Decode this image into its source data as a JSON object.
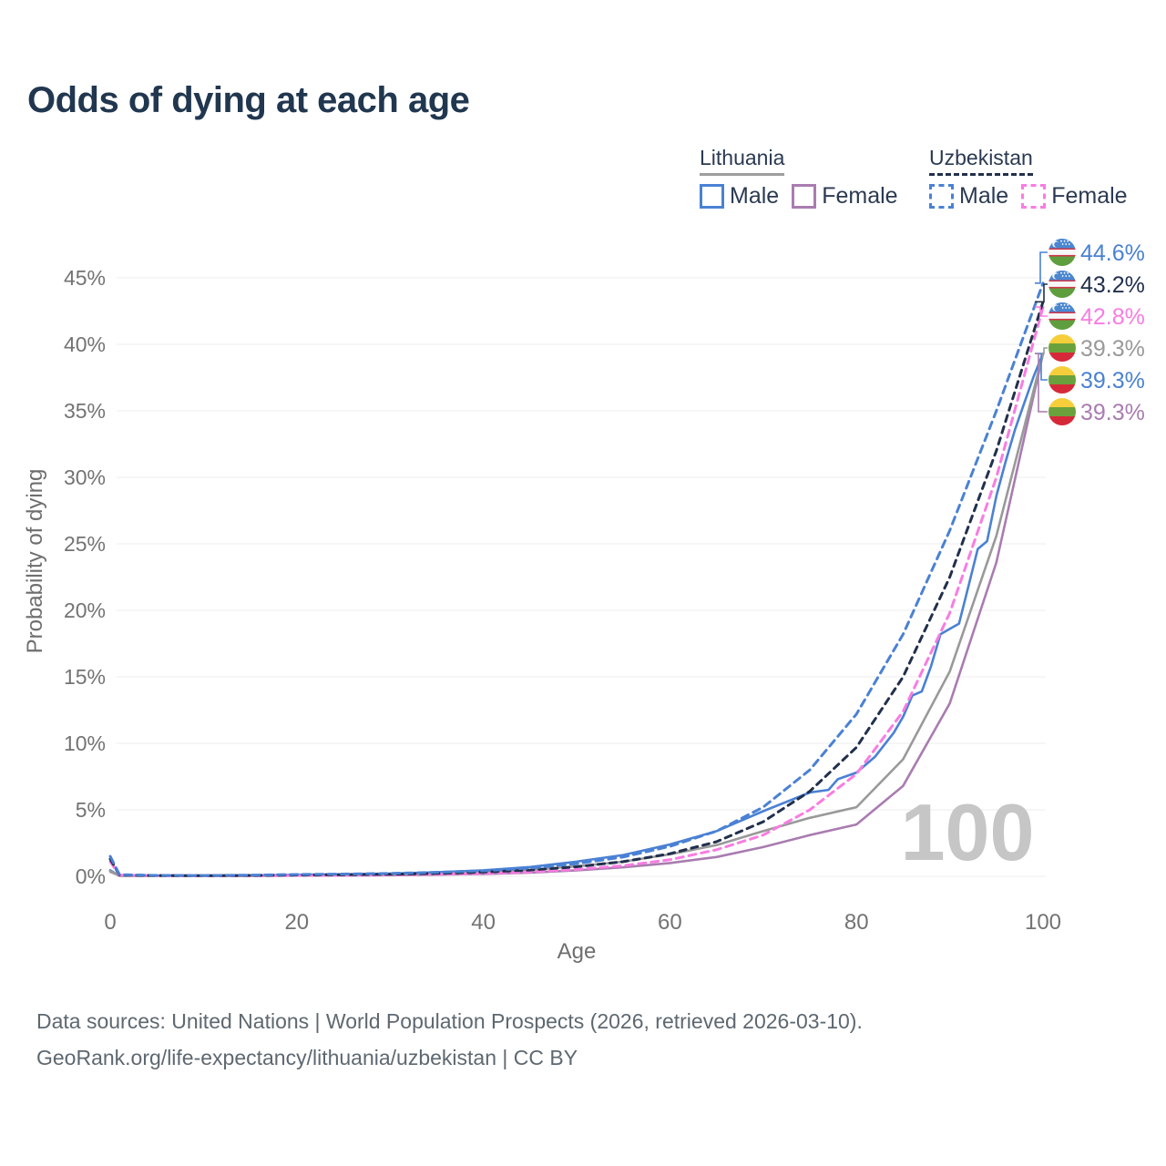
{
  "title": "Odds of dying at each age",
  "legend": {
    "groups": [
      {
        "id": "lithuania",
        "label": "Lithuania",
        "line_style": "solid",
        "line_color": "#9e9e9e",
        "items": [
          {
            "id": "male",
            "label": "Male",
            "color": "#4a81d4"
          },
          {
            "id": "female",
            "label": "Female",
            "color": "#a97cb0"
          }
        ]
      },
      {
        "id": "uzbekistan",
        "label": "Uzbekistan",
        "line_style": "dashed",
        "line_color": "#22304d",
        "items": [
          {
            "id": "male",
            "label": "Male",
            "color": "#4a81d4"
          },
          {
            "id": "female",
            "label": "Female",
            "color": "#f97ce1"
          }
        ]
      }
    ]
  },
  "chart_data": {
    "type": "line",
    "title": "Odds of dying at each age",
    "xlabel": "Age",
    "ylabel": "Probability of dying",
    "xlim": [
      0,
      100
    ],
    "ylim": [
      0,
      45
    ],
    "grid": "horizontal",
    "legend_position": "top-right",
    "hover_age_watermark": "100",
    "x_ticks": [
      {
        "v": 0,
        "label": "0"
      },
      {
        "v": 20,
        "label": "20"
      },
      {
        "v": 40,
        "label": "40"
      },
      {
        "v": 60,
        "label": "60"
      },
      {
        "v": 80,
        "label": "80"
      },
      {
        "v": 100,
        "label": "100"
      }
    ],
    "y_ticks": [
      {
        "v": 0,
        "label": "0%"
      },
      {
        "v": 5,
        "label": "5%"
      },
      {
        "v": 10,
        "label": "10%"
      },
      {
        "v": 15,
        "label": "15%"
      },
      {
        "v": 20,
        "label": "20%"
      },
      {
        "v": 25,
        "label": "25%"
      },
      {
        "v": 30,
        "label": "30%"
      },
      {
        "v": 35,
        "label": "35%"
      },
      {
        "v": 40,
        "label": "40%"
      },
      {
        "v": 45,
        "label": "45%"
      }
    ],
    "series": [
      {
        "id": "uzbekistan-male",
        "name": "Uzbekistan Male",
        "country": "Uzbekistan",
        "sex": "Male",
        "flag": "uzbekistan",
        "color": "#4a81d4",
        "dash": "8 6",
        "end_label": "44.6%",
        "points": [
          [
            0,
            1.5
          ],
          [
            1,
            0.12
          ],
          [
            5,
            0.07
          ],
          [
            10,
            0.06
          ],
          [
            15,
            0.09
          ],
          [
            20,
            0.14
          ],
          [
            25,
            0.17
          ],
          [
            30,
            0.22
          ],
          [
            35,
            0.3
          ],
          [
            40,
            0.42
          ],
          [
            45,
            0.62
          ],
          [
            50,
            0.95
          ],
          [
            55,
            1.45
          ],
          [
            60,
            2.25
          ],
          [
            65,
            3.4
          ],
          [
            70,
            5.2
          ],
          [
            75,
            8.0
          ],
          [
            80,
            12.2
          ],
          [
            85,
            18.2
          ],
          [
            90,
            26.0
          ],
          [
            95,
            35.0
          ],
          [
            100,
            44.6
          ]
        ]
      },
      {
        "id": "uzbekistan-total",
        "name": "Uzbekistan Both sexes",
        "country": "Uzbekistan",
        "sex": "Both",
        "flag": "uzbekistan",
        "color": "#22304d",
        "dash": "7 6",
        "end_label": "43.2%",
        "points": [
          [
            0,
            1.3
          ],
          [
            1,
            0.1
          ],
          [
            5,
            0.06
          ],
          [
            10,
            0.05
          ],
          [
            15,
            0.07
          ],
          [
            20,
            0.1
          ],
          [
            25,
            0.12
          ],
          [
            30,
            0.16
          ],
          [
            35,
            0.22
          ],
          [
            40,
            0.32
          ],
          [
            45,
            0.47
          ],
          [
            50,
            0.72
          ],
          [
            55,
            1.1
          ],
          [
            60,
            1.7
          ],
          [
            65,
            2.6
          ],
          [
            70,
            4.1
          ],
          [
            75,
            6.4
          ],
          [
            80,
            9.7
          ],
          [
            85,
            15.0
          ],
          [
            90,
            22.5
          ],
          [
            95,
            32.0
          ],
          [
            100,
            43.2
          ]
        ]
      },
      {
        "id": "uzbekistan-female",
        "name": "Uzbekistan Female",
        "country": "Uzbekistan",
        "sex": "Female",
        "flag": "uzbekistan",
        "color": "#f97ce1",
        "dash": "8 6",
        "end_label": "42.8%",
        "points": [
          [
            0,
            1.1
          ],
          [
            1,
            0.09
          ],
          [
            5,
            0.05
          ],
          [
            10,
            0.04
          ],
          [
            15,
            0.05
          ],
          [
            20,
            0.07
          ],
          [
            25,
            0.08
          ],
          [
            30,
            0.11
          ],
          [
            35,
            0.15
          ],
          [
            40,
            0.22
          ],
          [
            45,
            0.33
          ],
          [
            50,
            0.52
          ],
          [
            55,
            0.8
          ],
          [
            60,
            1.25
          ],
          [
            65,
            2.0
          ],
          [
            70,
            3.1
          ],
          [
            75,
            5.0
          ],
          [
            80,
            7.7
          ],
          [
            85,
            12.4
          ],
          [
            90,
            19.8
          ],
          [
            95,
            30.0
          ],
          [
            100,
            42.8
          ]
        ]
      },
      {
        "id": "lithuania-total",
        "name": "Lithuania Both sexes",
        "country": "Lithuania",
        "sex": "Both",
        "flag": "lithuania",
        "color": "#999999",
        "dash": null,
        "end_label": "39.3%",
        "points": [
          [
            0,
            0.4
          ],
          [
            1,
            0.04
          ],
          [
            5,
            0.02
          ],
          [
            10,
            0.02
          ],
          [
            15,
            0.04
          ],
          [
            20,
            0.08
          ],
          [
            25,
            0.1
          ],
          [
            30,
            0.14
          ],
          [
            35,
            0.2
          ],
          [
            40,
            0.3
          ],
          [
            45,
            0.48
          ],
          [
            50,
            0.75
          ],
          [
            55,
            1.1
          ],
          [
            60,
            1.65
          ],
          [
            65,
            2.35
          ],
          [
            70,
            3.4
          ],
          [
            75,
            4.4
          ],
          [
            80,
            5.2
          ],
          [
            85,
            8.8
          ],
          [
            90,
            15.4
          ],
          [
            95,
            25.6
          ],
          [
            100,
            39.3
          ]
        ]
      },
      {
        "id": "lithuania-male",
        "name": "Lithuania Male",
        "country": "Lithuania",
        "sex": "Male",
        "flag": "lithuania",
        "color": "#4a81d4",
        "dash": null,
        "end_label": "39.3%",
        "points": [
          [
            0,
            0.45
          ],
          [
            1,
            0.05
          ],
          [
            5,
            0.03
          ],
          [
            10,
            0.03
          ],
          [
            15,
            0.06
          ],
          [
            20,
            0.12
          ],
          [
            25,
            0.15
          ],
          [
            30,
            0.2
          ],
          [
            35,
            0.3
          ],
          [
            40,
            0.45
          ],
          [
            45,
            0.7
          ],
          [
            50,
            1.1
          ],
          [
            55,
            1.6
          ],
          [
            60,
            2.4
          ],
          [
            65,
            3.4
          ],
          [
            70,
            4.9
          ],
          [
            75,
            6.3
          ],
          [
            77,
            6.5
          ],
          [
            78,
            7.3
          ],
          [
            80,
            7.8
          ],
          [
            82,
            9.0
          ],
          [
            84,
            10.8
          ],
          [
            85,
            12.0
          ],
          [
            86,
            13.6
          ],
          [
            87,
            13.9
          ],
          [
            88,
            15.8
          ],
          [
            89,
            18.2
          ],
          [
            90,
            18.6
          ],
          [
            91,
            19.0
          ],
          [
            92,
            21.8
          ],
          [
            93,
            24.6
          ],
          [
            94,
            25.2
          ],
          [
            95,
            28.6
          ],
          [
            96,
            31.2
          ],
          [
            97,
            33.6
          ],
          [
            98,
            35.6
          ],
          [
            99,
            37.6
          ],
          [
            100,
            39.3
          ]
        ]
      },
      {
        "id": "lithuania-female",
        "name": "Lithuania Female",
        "country": "Lithuania",
        "sex": "Female",
        "flag": "lithuania",
        "color": "#a97cb0",
        "dash": null,
        "end_label": "39.3%",
        "points": [
          [
            0,
            0.35
          ],
          [
            1,
            0.04
          ],
          [
            5,
            0.02
          ],
          [
            10,
            0.02
          ],
          [
            15,
            0.03
          ],
          [
            20,
            0.05
          ],
          [
            25,
            0.06
          ],
          [
            30,
            0.08
          ],
          [
            35,
            0.12
          ],
          [
            40,
            0.18
          ],
          [
            45,
            0.28
          ],
          [
            50,
            0.45
          ],
          [
            55,
            0.68
          ],
          [
            60,
            1.0
          ],
          [
            65,
            1.45
          ],
          [
            70,
            2.2
          ],
          [
            75,
            3.1
          ],
          [
            80,
            3.9
          ],
          [
            85,
            6.8
          ],
          [
            90,
            13.0
          ],
          [
            95,
            23.6
          ],
          [
            100,
            39.3
          ]
        ]
      }
    ]
  },
  "flags": {
    "uzbekistan": {
      "stripes": [
        {
          "y": -15,
          "h": 10.5,
          "color": "#4a87d0"
        },
        {
          "y": -4.5,
          "h": 1.6,
          "color": "#d0374a"
        },
        {
          "y": -2.9,
          "h": 5.8,
          "color": "#f7f7f7"
        },
        {
          "y": 2.9,
          "h": 1.6,
          "color": "#d0374a"
        },
        {
          "y": 4.5,
          "h": 10.5,
          "color": "#5f9e3e"
        }
      ]
    },
    "lithuania": {
      "stripes": [
        {
          "y": -15,
          "h": 10,
          "color": "#f6ce3c"
        },
        {
          "y": -5,
          "h": 10,
          "color": "#6ba13c"
        },
        {
          "y": 5,
          "h": 10,
          "color": "#d5293a"
        }
      ]
    }
  },
  "footer": {
    "line1": "Data sources: United Nations | World Population Prospects (2026, retrieved 2026-03-10).",
    "line2": "GeoRank.org/life-expectancy/lithuania/uzbekistan | CC BY"
  }
}
